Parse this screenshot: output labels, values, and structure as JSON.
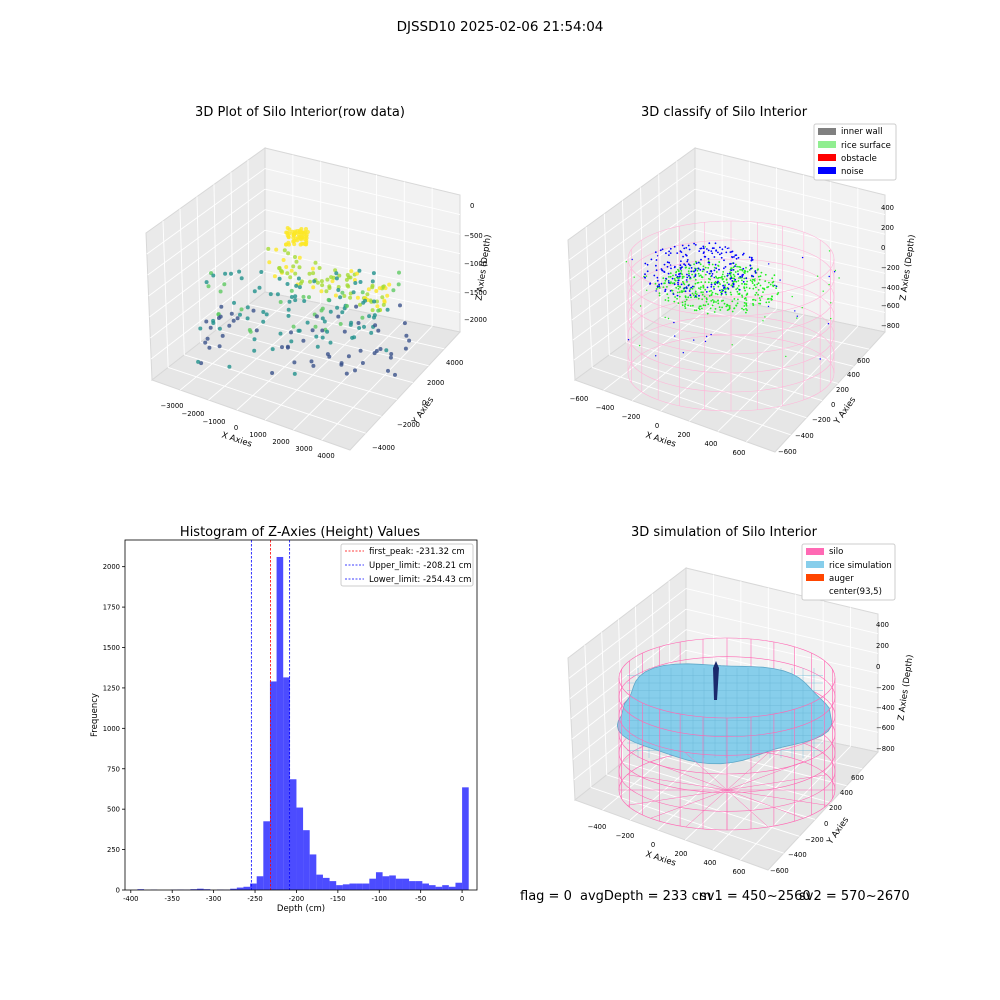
{
  "figure": {
    "suptitle": "DJSSD10 2025-02-06 21:54:04"
  },
  "chart_data": [
    {
      "type": "scatter3d",
      "title": "3D Plot of Silo Interior(row data)",
      "xlabel": "X Axies",
      "ylabel": "Y Axies",
      "zlabel": "Z Axies (Depth)",
      "x_ticks": [
        "−3000",
        "−2000",
        "−1000",
        "0",
        "1000",
        "2000",
        "3000",
        "4000"
      ],
      "y_ticks": [
        "−4000",
        "−2000",
        "0",
        "2000",
        "4000"
      ],
      "z_ticks": [
        "0",
        "−500",
        "−1000",
        "−1500",
        "−2000"
      ],
      "colormap": "viridis"
    },
    {
      "type": "scatter3d",
      "title": "3D classify of Silo Interior",
      "xlabel": "X Axies",
      "ylabel": "Y Axies",
      "zlabel": "Z Axies (Depth)",
      "x_ticks": [
        "−600",
        "−400",
        "−200",
        "0",
        "200",
        "400",
        "600"
      ],
      "y_ticks": [
        "−600",
        "−400",
        "−200",
        "0",
        "200",
        "400",
        "600"
      ],
      "z_ticks": [
        "400",
        "200",
        "0",
        "−200",
        "−400",
        "−600",
        "−800"
      ],
      "legend": {
        "position": "top-right",
        "items": [
          {
            "label": "inner wall",
            "color": "#808080"
          },
          {
            "label": "rice surface",
            "color": "#90ee90"
          },
          {
            "label": "obstacle",
            "color": "#ff0000"
          },
          {
            "label": "noise",
            "color": "#0000ff"
          }
        ]
      }
    },
    {
      "type": "bar",
      "title": "Histogram of Z-Axies (Height) Values",
      "xlabel": "Depth (cm)",
      "ylabel": "Frequency",
      "xlim": [
        -407,
        18
      ],
      "ylim": [
        0,
        2165
      ],
      "x_ticks": [
        -400,
        -350,
        -300,
        -250,
        -200,
        -150,
        -100,
        -50,
        0
      ],
      "y_ticks": [
        0,
        250,
        500,
        750,
        1000,
        1250,
        1500,
        1750,
        2000
      ],
      "bar_color": "#0000ff",
      "bin_start": -400,
      "bin_width": 8,
      "values": [
        0,
        5,
        0,
        2,
        0,
        0,
        2,
        3,
        2,
        5,
        8,
        5,
        0,
        3,
        2,
        8,
        15,
        20,
        40,
        85,
        425,
        1290,
        2060,
        1315,
        685,
        510,
        370,
        220,
        95,
        75,
        55,
        30,
        35,
        40,
        40,
        40,
        70,
        110,
        85,
        90,
        70,
        70,
        55,
        55,
        40,
        30,
        20,
        30,
        20,
        45,
        635
      ],
      "lines": [
        {
          "label": "first_peak: -231.32 cm",
          "x": -231.32,
          "color": "#ff0000"
        },
        {
          "label": "Upper_limit: -208.21 cm",
          "x": -208.21,
          "color": "#0000ff"
        },
        {
          "label": "Lower_limit: -254.43 cm",
          "x": -254.43,
          "color": "#0000ff"
        }
      ],
      "legend": {
        "position": "top-right"
      }
    },
    {
      "type": "surface3d",
      "title": "3D simulation of Silo Interior",
      "xlabel": "X Axies",
      "ylabel": "Y Axies",
      "zlabel": "Z Axies (Depth)",
      "x_ticks": [
        "−400",
        "−200",
        "0",
        "200",
        "400",
        "600"
      ],
      "y_ticks": [
        "−600",
        "−400",
        "−200",
        "0",
        "200",
        "400",
        "600"
      ],
      "z_ticks": [
        "400",
        "200",
        "0",
        "−200",
        "−400",
        "−600",
        "−800"
      ],
      "legend": {
        "position": "top-right",
        "items": [
          {
            "label": "silo",
            "color": "#ff69b4"
          },
          {
            "label": "rice simulation",
            "color": "#87ceeb"
          },
          {
            "label": "auger",
            "color": "#ff4500"
          },
          {
            "label": "center(93,5)",
            "color": "#ffffff"
          }
        ]
      }
    }
  ],
  "status": {
    "flag": "flag = 0",
    "avg_depth": "avgDepth = 233 cm",
    "sv1": "sv1 = 450~2560",
    "sv2": "sv2 = 570~2670"
  }
}
